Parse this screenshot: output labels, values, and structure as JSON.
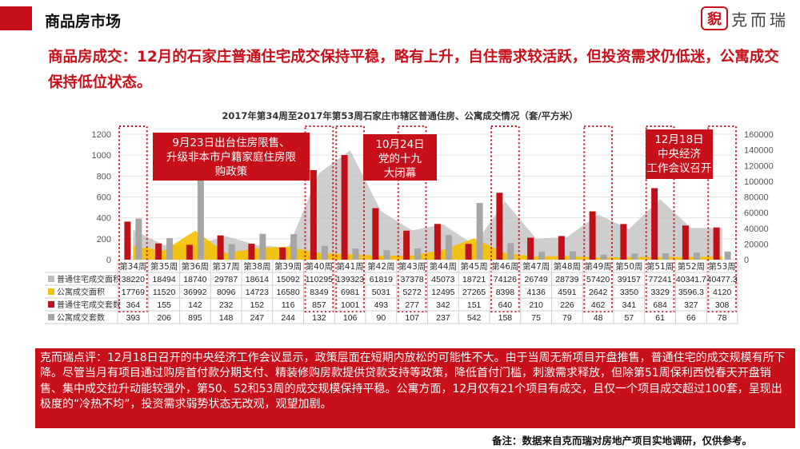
{
  "header": {
    "section_title": "商品房市场",
    "brand_seal": "貎",
    "brand_name": "克而瑞"
  },
  "headline": "商品房成交：12月的石家庄普通住宅成交保持平稳，略有上升，自住需求较活跃，但投资需求仍低迷，公寓成交保持低位状态。",
  "chart_title": "2017年第34周至2017年第53周石家庄市辖区普通住房、公寓成交情况（套/平方米）",
  "annotations": {
    "a1": "9月23日出台住房限售、升级非本市户籍家庭住房限购政策",
    "a2": "10月24日党的十九大闭幕",
    "a3": "12月18日中央经济工作会议召开"
  },
  "comment": "克而瑞点评：12月18日召开的中央经济工作会议显示，政策层面在短期内放松的可能性不大。由于当周无新项目开盘推售，普通住宅的成交规模有所下降。尽管当月有项目通过购房首付款分期支付、精装修购房款提供贷款支持等政策，降低首付门槛，刺激需求释放，但除第51周保利西悦春天开盘销售、集中成交拉升动能较强外，第50、52和53周的成交规模保持平稳。公寓方面，12月仅有21个项目有成交，且仅一个项目成交超过100套，呈现出极度的“冷热不均”，投资需求弱势状态无改观，观望加剧。",
  "note": "备注：数据来自克而瑞对房地产项目实地调研，仅供参考。",
  "chart_data": {
    "type": "bar",
    "title": "2017年第34周至2017年第53周石家庄市辖区普通住房、公寓成交情况（套/平方米）",
    "categories": [
      "第34周",
      "第35周",
      "第36周",
      "第37周",
      "第38周",
      "第39周",
      "第40周",
      "第41周",
      "第42周",
      "第43周",
      "第44周",
      "第45周",
      "第46周",
      "第47周",
      "第48周",
      "第49周",
      "第50周",
      "第51周",
      "第52周",
      "第53周"
    ],
    "y_left": {
      "min": 0,
      "max": 1200,
      "ticks": [
        "0",
        "200",
        "400",
        "600",
        "800",
        "1000",
        "1200"
      ]
    },
    "y_right": {
      "min": 0,
      "max": 160000,
      "ticks": [
        "0",
        "20000",
        "40000",
        "60000",
        "80000",
        "100000",
        "120000",
        "140000",
        "160000"
      ]
    },
    "series": [
      {
        "name": "普通住宅成交面积",
        "type": "area",
        "axis": "right",
        "color": "#bdbdbd",
        "values": [
          38220,
          18494,
          18740,
          29787,
          18614,
          15092,
          110295,
          139323,
          61819,
          37378,
          45073,
          18721,
          74126,
          26749,
          28739,
          57420,
          39157,
          77241,
          40341.7,
          40477.3
        ],
        "labels": [
          "38220",
          "18494",
          "18740",
          "29787",
          "18614",
          "15092",
          "110295",
          "139323",
          "61819",
          "37378",
          "45073",
          "18721",
          "74126",
          "26749",
          "28739",
          "57420",
          "39157",
          "77241",
          "40341.7",
          "40477.3"
        ]
      },
      {
        "name": "公寓成交面积",
        "type": "area",
        "axis": "right",
        "color": "#f5c000",
        "values": [
          17769,
          11520,
          36992,
          8096,
          14723,
          16580,
          8349,
          6981,
          5031,
          5272,
          12495,
          27265,
          8398,
          4136,
          4591,
          2642,
          3350,
          3329,
          3596.3,
          4120
        ],
        "labels": [
          "17769",
          "11520",
          "36992",
          "8096",
          "14723",
          "16580",
          "8349",
          "6981",
          "5031",
          "5272",
          "12495",
          "27265",
          "8398",
          "4136",
          "4591",
          "2642",
          "3350",
          "3329",
          "3596.3",
          "4120"
        ]
      },
      {
        "name": "普通住宅成交套数",
        "type": "bar",
        "axis": "left",
        "color": "#c0101a",
        "values": [
          364,
          155,
          142,
          232,
          152,
          116,
          857,
          1001,
          493,
          277,
          342,
          151,
          640,
          210,
          226,
          462,
          341,
          684,
          327,
          308
        ]
      },
      {
        "name": "公寓成交套数",
        "type": "bar",
        "axis": "left",
        "color": "#a6a6a6",
        "values": [
          393,
          206,
          895,
          148,
          247,
          244,
          132,
          106,
          90,
          107,
          237,
          542,
          158,
          75,
          79,
          48,
          57,
          61,
          66,
          78
        ]
      }
    ],
    "grid": true,
    "legend": "table-below"
  }
}
